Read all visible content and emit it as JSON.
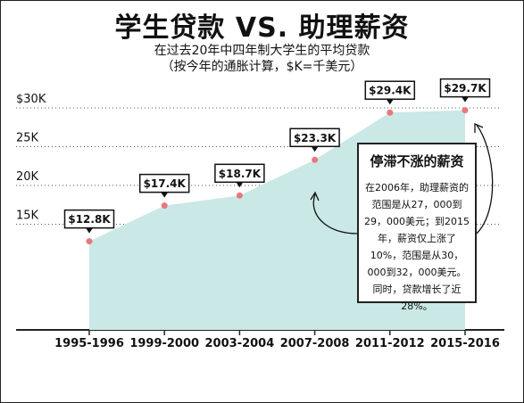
{
  "title": "学生贷款 VS. 助理薪资",
  "subtitle_line1": "在过去20年中四年制大学生的平均贷款",
  "subtitle_line2": "（按今年的通胀计算，$K=千美元）",
  "note": {
    "title": "停滞不涨的薪资",
    "body": "在2006年，助理薪资的范围是从27，000到29，000美元；到2015年，薪资仅上涨了10%，范围是从30，000到32，000美元。同时，贷款增长了近28%。"
  },
  "colors": {
    "area": "#c9e8e6",
    "marker": "#e8787a",
    "axis": "#222222",
    "grid": "#555555"
  },
  "chart_data": {
    "type": "area",
    "title": "学生贷款 VS. 助理薪资",
    "categories": [
      "1995-1996",
      "1999-2000",
      "2003-2004",
      "2007-2008",
      "2011-2012",
      "2015-2016"
    ],
    "values": [
      12.8,
      17.4,
      18.7,
      23.3,
      29.4,
      29.7
    ],
    "data_labels": [
      "$12.8K",
      "$17.4K",
      "$18.7K",
      "$23.3K",
      "$29.4K",
      "$29.7K"
    ],
    "y_ticks": [
      {
        "value": 15,
        "label": "15K"
      },
      {
        "value": 20,
        "label": "20K"
      },
      {
        "value": 25,
        "label": "25K"
      },
      {
        "value": 30,
        "label": "$30K"
      }
    ],
    "ylim": [
      10,
      32
    ],
    "grid": "dotted horizontal"
  }
}
